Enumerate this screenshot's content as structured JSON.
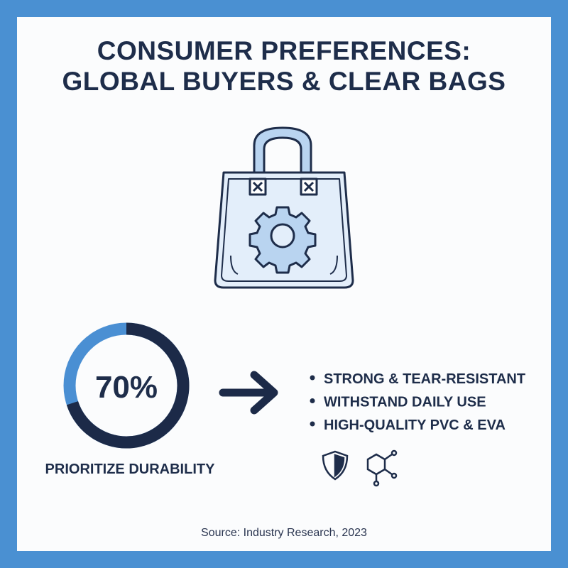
{
  "header": {
    "title_line1": "CONSUMER PREFERENCES:",
    "title_line2": "GLOBAL BUYERS & CLEAR BAGS"
  },
  "stat": {
    "value": 70,
    "label": "70%",
    "caption": "PRIORITIZE DURABILITY"
  },
  "bullets": [
    "STRONG & TEAR-RESISTANT",
    "WITHSTAND DAILY USE",
    "HIGH-QUALITY PVC & EVA"
  ],
  "footer": {
    "source": "Source: Industry Research, 2023"
  }
}
